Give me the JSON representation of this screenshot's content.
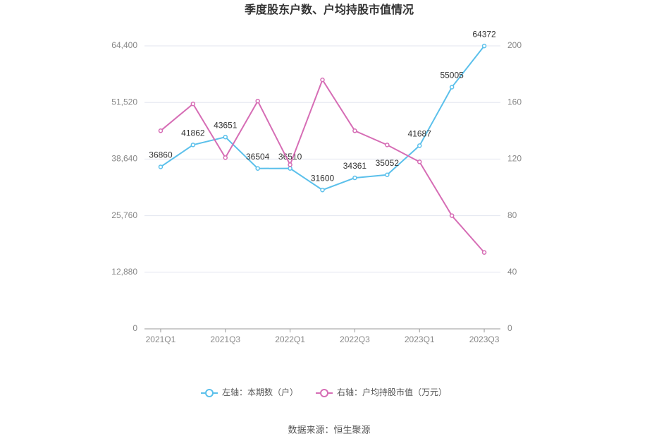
{
  "chart_data": {
    "type": "line",
    "title": "季度股东户数、户均持股市值情况",
    "categories": [
      "2021Q1",
      null,
      "2021Q3",
      null,
      "2022Q1",
      null,
      "2022Q3",
      null,
      "2023Q1",
      null,
      "2023Q3"
    ],
    "series": [
      {
        "name": "左轴：本期数（户）",
        "color": "#5bc0eb",
        "values": [
          36860,
          41862,
          43651,
          36504,
          36510,
          31600,
          34361,
          35052,
          41687,
          55005,
          64372
        ]
      },
      {
        "name": "右轴：户均持股市值（万元）",
        "color": "#d66db5",
        "axis": "y2",
        "values": [
          140,
          159,
          121,
          161,
          116,
          176,
          140,
          130,
          118,
          80,
          54
        ]
      }
    ],
    "ylim": [
      0,
      64400
    ],
    "yticks": [
      0,
      {
        "value": 12880,
        "label": "12,880"
      },
      {
        "value": 25760,
        "label": "25,760"
      },
      {
        "value": 38640,
        "label": "38,640"
      },
      {
        "value": 51520,
        "label": "51,520"
      },
      {
        "value": 64400,
        "label": "64,400"
      }
    ],
    "y2lim": [
      0,
      200
    ],
    "y2ticks": [
      0,
      40,
      80,
      120,
      160,
      200
    ],
    "grid": true,
    "source": "数据来源：恒生聚源"
  }
}
